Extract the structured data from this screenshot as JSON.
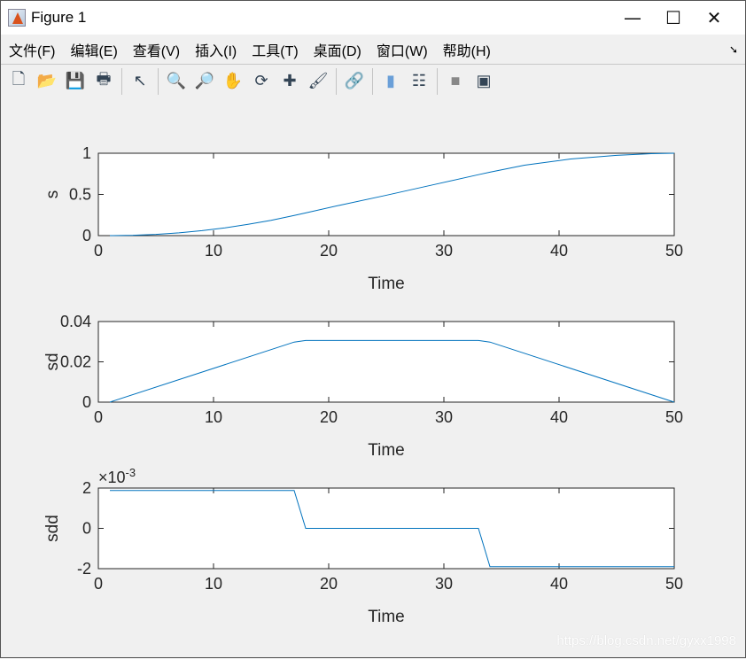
{
  "window": {
    "title": "Figure 1",
    "minimize": "—",
    "maximize": "☐",
    "close": "✕"
  },
  "menu": [
    "文件(F)",
    "编辑(E)",
    "查看(V)",
    "插入(I)",
    "工具(T)",
    "桌面(D)",
    "窗口(W)",
    "帮助(H)"
  ],
  "toolbar": [
    "new-figure-icon",
    "open-icon",
    "save-icon",
    "print-icon",
    "pointer-icon",
    "zoom-in-icon",
    "zoom-out-icon",
    "pan-icon",
    "rotate-3d-icon",
    "data-cursor-icon",
    "brush-icon",
    "link-icon",
    "colorbar-icon",
    "legend-icon",
    "hide-plot-tools-icon",
    "show-plot-tools-icon"
  ],
  "watermark": "https://blog.csdn.net/gyxx1998",
  "colors": {
    "line": "#0072bd",
    "background": "#f0f0f0"
  },
  "chart_data": [
    {
      "type": "line",
      "xlabel": "Time",
      "ylabel": "s",
      "xlim": [
        0,
        50
      ],
      "ylim": [
        0,
        1
      ],
      "xticks": [
        "0",
        "10",
        "20",
        "30",
        "40",
        "50"
      ],
      "yticks": [
        "0",
        "0.5",
        "1"
      ],
      "grid": false,
      "x": [
        1,
        3,
        5,
        7,
        9,
        11,
        13,
        15,
        17,
        18,
        21,
        25,
        29,
        33,
        34,
        37,
        41,
        45,
        48,
        50
      ],
      "y": [
        0,
        0.004,
        0.015,
        0.034,
        0.06,
        0.094,
        0.137,
        0.186,
        0.245,
        0.275,
        0.37,
        0.49,
        0.615,
        0.74,
        0.77,
        0.855,
        0.93,
        0.975,
        0.995,
        1.0
      ]
    },
    {
      "type": "line",
      "xlabel": "Time",
      "ylabel": "sd",
      "xlim": [
        0,
        50
      ],
      "ylim": [
        0,
        0.04
      ],
      "xticks": [
        "0",
        "10",
        "20",
        "30",
        "40",
        "50"
      ],
      "yticks": [
        "0",
        "0.02",
        "0.04"
      ],
      "grid": false,
      "x": [
        1,
        17,
        18,
        33,
        34,
        50
      ],
      "y": [
        0,
        0.0298,
        0.0306,
        0.0306,
        0.0298,
        0
      ]
    },
    {
      "type": "line",
      "xlabel": "Time",
      "ylabel": "sdd",
      "xlim": [
        0,
        50
      ],
      "ylim": [
        -0.002,
        0.002
      ],
      "xticks": [
        "0",
        "10",
        "20",
        "30",
        "40",
        "50"
      ],
      "yticks": [
        "-2",
        "0",
        "2"
      ],
      "exponent": "-3",
      "exponent_prefix": "×10",
      "grid": false,
      "x": [
        1,
        17,
        18,
        33,
        34,
        50
      ],
      "y": [
        0.00188,
        0.00188,
        0,
        0,
        -0.0019,
        -0.0019
      ]
    }
  ]
}
